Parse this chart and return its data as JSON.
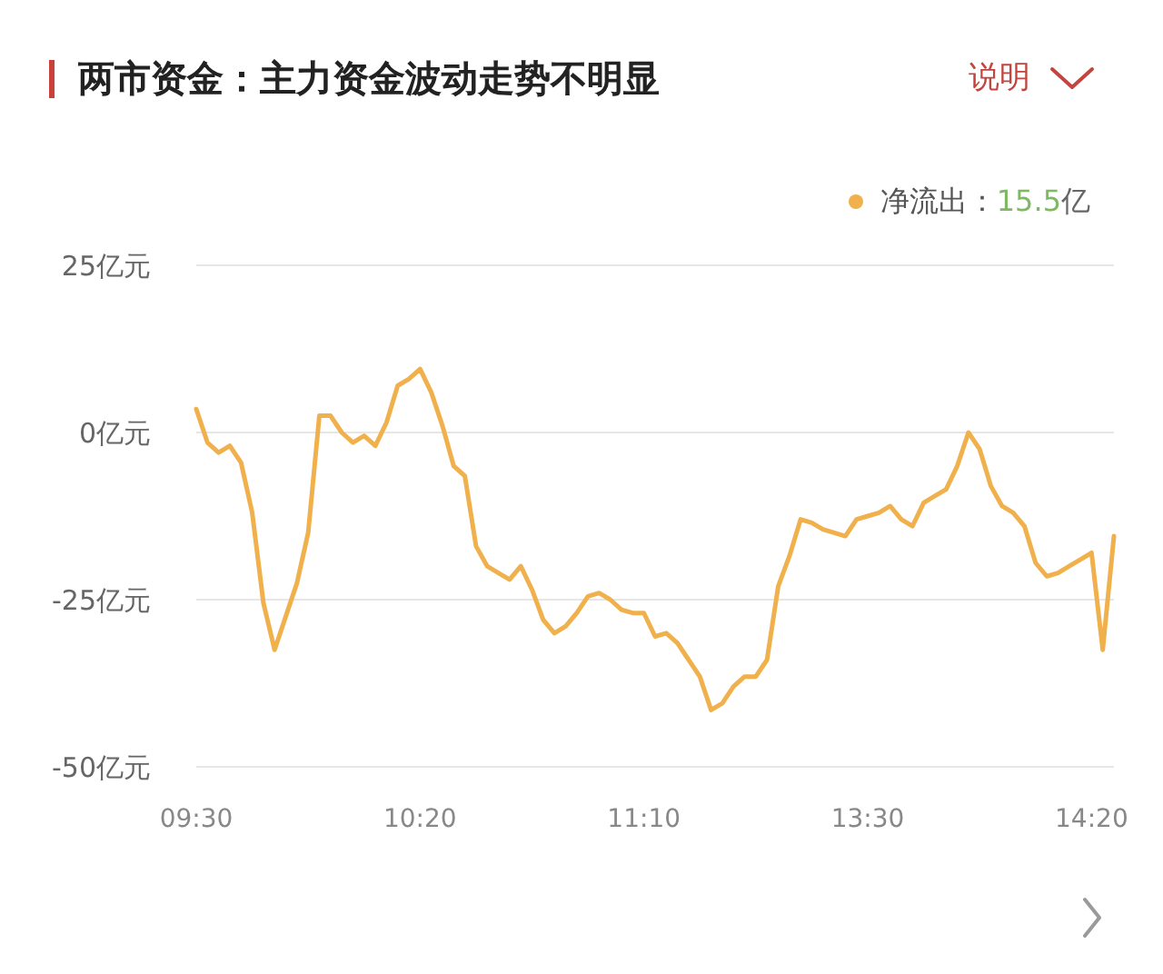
{
  "chart_data": {
    "type": "line",
    "title": "两市资金：主力资金波动走势不明显",
    "annotations": [
      "说明",
      "15.5亿"
    ],
    "categories": [
      "09:30",
      null,
      null,
      null,
      null,
      null,
      null,
      null,
      null,
      null,
      null,
      null,
      null,
      null,
      null,
      null,
      null,
      null,
      null,
      null,
      "10:20",
      null,
      null,
      null,
      null,
      null,
      null,
      null,
      null,
      null,
      null,
      null,
      null,
      null,
      null,
      null,
      null,
      null,
      null,
      null,
      "11:10",
      null,
      null,
      null,
      null,
      null,
      null,
      null,
      null,
      null,
      null,
      null,
      null,
      null,
      null,
      null,
      null,
      null,
      null,
      null,
      "13:30",
      null,
      null,
      null,
      null,
      null,
      null,
      null,
      null,
      null,
      null,
      null,
      null,
      null,
      null,
      null,
      null,
      null,
      null,
      null,
      "14:20",
      null,
      null
    ],
    "series": [
      {
        "name": "净流出：",
        "color": "#f0b04c",
        "values": [
          3.5,
          -1.5,
          -3,
          -2,
          -4.5,
          -12,
          -25.5,
          -32.5,
          -27.5,
          -22.5,
          -15,
          2.5,
          2.5,
          0,
          -1.5,
          -0.5,
          -2,
          1.5,
          7,
          8,
          9.5,
          6,
          1,
          -5,
          -6.5,
          -17,
          -20,
          -21,
          -22,
          -20,
          -23.5,
          -28,
          -30,
          -29,
          -27,
          -24.5,
          -24,
          -25,
          -26.5,
          -27,
          -27,
          -30.5,
          -30,
          -31.5,
          -34,
          -36.5,
          -41.5,
          -40.5,
          -38,
          -36.5,
          -36.5,
          -34,
          -23,
          -18.5,
          -13,
          -13.5,
          -14.5,
          -15,
          -15.5,
          -13,
          -12.5,
          -12,
          -11,
          -13,
          -14,
          -10.5,
          -9.5,
          -8.5,
          -5,
          0,
          -2.5,
          -8,
          -11,
          -12,
          -14,
          -19.5,
          -21.5,
          -21,
          -20,
          -19,
          -18,
          -32.5,
          -15.5
        ]
      }
    ],
    "ylim": [
      -50,
      25
    ],
    "yticks": [
      {
        "value": -50,
        "label": "-50亿元"
      },
      {
        "value": -25,
        "label": "-25亿元"
      },
      {
        "value": 0,
        "label": "0亿元"
      },
      {
        "value": 25,
        "label": "25亿元"
      }
    ],
    "grid": "y",
    "legend": "top right"
  }
}
